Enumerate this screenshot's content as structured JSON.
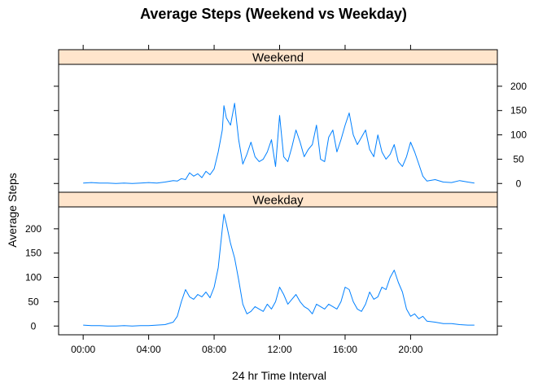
{
  "chart_data": {
    "type": "line",
    "title": "Average Steps (Weekend vs Weekday)",
    "xlabel": "24 hr Time Interval",
    "ylabel": "Average Steps",
    "x_ticks": [
      "00:00",
      "04:00",
      "08:00",
      "12:00",
      "16:00",
      "20:00"
    ],
    "x_tick_hours": [
      0,
      4,
      8,
      12,
      16,
      20
    ],
    "xlim_hours": [
      -1.5,
      25.3
    ],
    "y_ticks": [
      0,
      50,
      100,
      150,
      200
    ],
    "ylim": [
      -18,
      245
    ],
    "line_color": "#0080ff",
    "strip_color": "#ffe5cc",
    "grid": false,
    "panels": [
      {
        "name": "Weekend",
        "x_hours": [
          0,
          0.5,
          1,
          1.5,
          2,
          2.5,
          3,
          3.5,
          4,
          4.5,
          5,
          5.5,
          5.75,
          6,
          6.25,
          6.5,
          6.75,
          7,
          7.25,
          7.5,
          7.75,
          8,
          8.25,
          8.5,
          8.6,
          8.75,
          9,
          9.25,
          9.5,
          9.75,
          10,
          10.25,
          10.5,
          10.75,
          11,
          11.25,
          11.5,
          11.75,
          12,
          12.25,
          12.5,
          12.75,
          13,
          13.25,
          13.5,
          13.75,
          14,
          14.25,
          14.5,
          14.75,
          15,
          15.25,
          15.5,
          15.75,
          16,
          16.25,
          16.5,
          16.75,
          17,
          17.25,
          17.5,
          17.75,
          18,
          18.25,
          18.5,
          18.75,
          19,
          19.25,
          19.5,
          19.75,
          20,
          20.25,
          20.5,
          20.75,
          21,
          21.5,
          22,
          22.5,
          23,
          23.5,
          23.9
        ],
        "values": [
          1,
          2,
          1,
          1,
          0,
          1,
          0,
          1,
          2,
          1,
          3,
          6,
          5,
          10,
          8,
          22,
          15,
          20,
          12,
          25,
          18,
          30,
          65,
          110,
          160,
          135,
          120,
          165,
          90,
          40,
          60,
          85,
          55,
          45,
          50,
          65,
          90,
          35,
          140,
          55,
          45,
          75,
          110,
          85,
          55,
          70,
          80,
          120,
          50,
          45,
          95,
          110,
          65,
          90,
          120,
          145,
          100,
          80,
          95,
          110,
          70,
          55,
          100,
          65,
          50,
          60,
          80,
          45,
          35,
          55,
          85,
          65,
          40,
          15,
          5,
          8,
          3,
          2,
          6,
          3,
          1
        ]
      },
      {
        "name": "Weekday",
        "x_hours": [
          0,
          0.5,
          1,
          1.5,
          2,
          2.5,
          3,
          3.5,
          4,
          4.5,
          5,
          5.5,
          5.75,
          6,
          6.25,
          6.5,
          6.75,
          7,
          7.25,
          7.5,
          7.75,
          8,
          8.25,
          8.5,
          8.6,
          8.75,
          9,
          9.25,
          9.5,
          9.75,
          10,
          10.25,
          10.5,
          10.75,
          11,
          11.25,
          11.5,
          11.75,
          12,
          12.25,
          12.5,
          12.75,
          13,
          13.25,
          13.5,
          13.75,
          14,
          14.25,
          14.5,
          14.75,
          15,
          15.25,
          15.5,
          15.75,
          16,
          16.25,
          16.5,
          16.75,
          17,
          17.25,
          17.5,
          17.75,
          18,
          18.25,
          18.5,
          18.75,
          19,
          19.25,
          19.5,
          19.75,
          20,
          20.25,
          20.5,
          20.75,
          21,
          21.5,
          22,
          22.5,
          23,
          23.5,
          23.9
        ],
        "values": [
          2,
          1,
          1,
          0,
          0,
          1,
          0,
          1,
          1,
          2,
          3,
          8,
          20,
          50,
          75,
          60,
          55,
          65,
          60,
          70,
          58,
          80,
          120,
          200,
          230,
          210,
          170,
          140,
          95,
          45,
          25,
          30,
          40,
          35,
          30,
          45,
          35,
          50,
          80,
          65,
          45,
          55,
          65,
          50,
          40,
          35,
          25,
          45,
          40,
          35,
          45,
          40,
          35,
          50,
          80,
          75,
          50,
          35,
          30,
          45,
          70,
          55,
          60,
          80,
          75,
          100,
          115,
          90,
          70,
          35,
          20,
          25,
          15,
          20,
          10,
          8,
          5,
          5,
          3,
          2,
          2
        ]
      }
    ]
  }
}
